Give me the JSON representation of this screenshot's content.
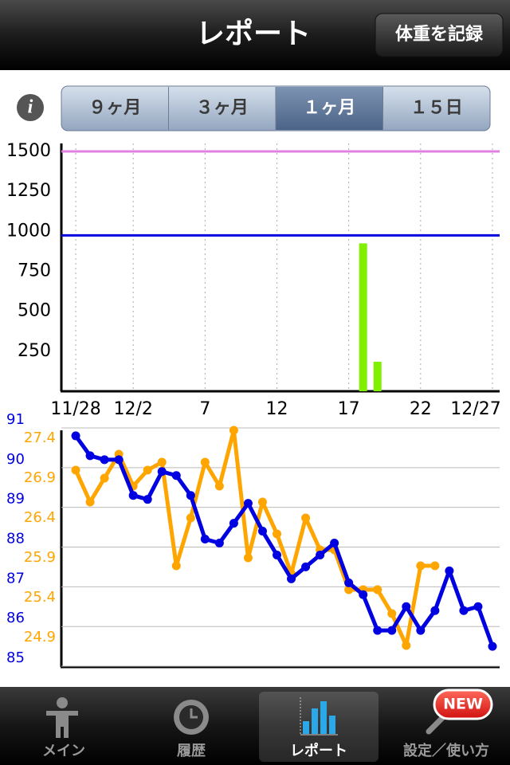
{
  "nav": {
    "title": "レポート",
    "button": "体重を記録"
  },
  "info_icon": "i",
  "segments": [
    "９ヶ月",
    "３ヶ月",
    "１ヶ月",
    "１５日"
  ],
  "selected_segment": 2,
  "chart_data": [
    {
      "type": "bar",
      "xlim": [
        -1,
        29.5
      ],
      "xticks": [
        {
          "value": 0,
          "label": "11/28"
        },
        {
          "value": 4,
          "label": "12/2"
        },
        {
          "value": 9,
          "label": "7"
        },
        {
          "value": 14,
          "label": "12"
        },
        {
          "value": 19,
          "label": "17"
        },
        {
          "value": 24,
          "label": "22"
        },
        {
          "value": 29,
          "label": "12/27"
        }
      ],
      "ylim": [
        0,
        1500
      ],
      "yticks": [
        250,
        500,
        750,
        1000,
        1250,
        1500
      ],
      "x": [
        20,
        21
      ],
      "values": [
        925,
        185
      ],
      "color": "#80f000",
      "reference_lines": [
        {
          "value": 1500,
          "color": "#e080e0"
        },
        {
          "value": 975,
          "color": "#0000e0"
        }
      ],
      "grid": "x"
    },
    {
      "type": "line",
      "xlim": [
        -1,
        29.5
      ],
      "x": [
        0,
        1,
        2,
        3,
        4,
        5,
        6,
        7,
        8,
        9,
        10,
        11,
        12,
        13,
        14,
        15,
        16,
        17,
        18,
        19,
        20,
        21,
        22,
        23,
        24,
        25,
        26,
        27,
        28,
        29
      ],
      "ylim": [
        84.8,
        91
      ],
      "yticks": [
        85,
        86,
        87,
        88,
        89,
        90,
        91
      ],
      "y2lim": [
        24.54,
        27.63
      ],
      "y2ticks": [
        24.9,
        25.4,
        25.9,
        26.4,
        26.9,
        27.4
      ],
      "grid": true,
      "series": [
        {
          "color": "#0000e0",
          "values": [
            90.6,
            90.1,
            90.0,
            90.0,
            89.1,
            89.0,
            89.7,
            89.6,
            89.1,
            88.0,
            87.9,
            88.4,
            88.9,
            88.2,
            87.6,
            87.0,
            87.3,
            87.6,
            87.9,
            86.9,
            86.6,
            85.7,
            85.7,
            86.3,
            85.7,
            86.2,
            87.2,
            86.2,
            86.3,
            85.3
          ]
        },
        {
          "color": "#ffa500",
          "axis": "y2",
          "values": [
            27.0,
            26.6,
            26.9,
            27.2,
            26.8,
            27.0,
            27.1,
            25.8,
            26.4,
            27.1,
            26.8,
            27.5,
            25.9,
            26.6,
            26.2,
            25.7,
            26.4,
            26.0,
            26.0,
            25.5,
            25.5,
            25.5,
            25.2,
            24.8,
            25.8,
            25.8,
            null,
            null,
            null,
            null
          ]
        }
      ]
    }
  ],
  "tabs": [
    "メイン",
    "履歴",
    "レポート",
    "設定／使い方"
  ],
  "selected_tab": 2,
  "badge": "NEW"
}
